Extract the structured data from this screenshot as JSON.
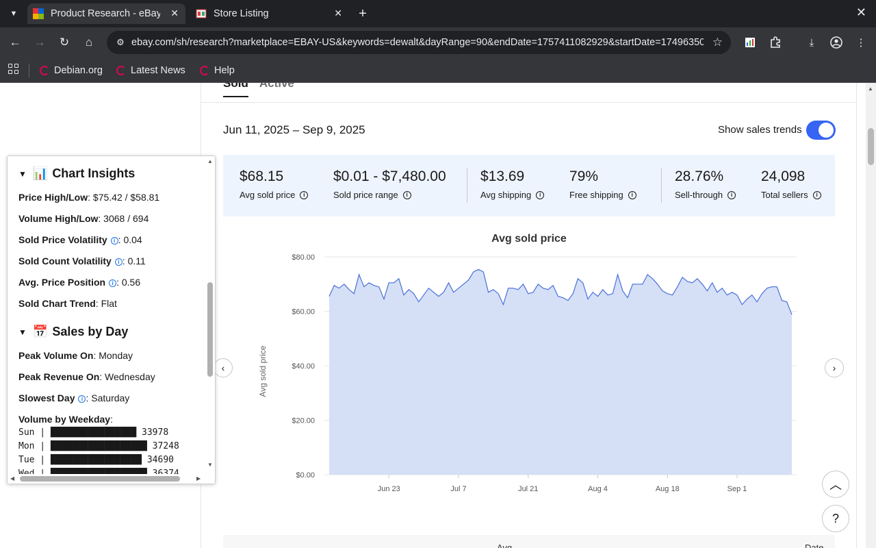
{
  "browser": {
    "tabs": [
      {
        "title": "Product Research - eBay",
        "active": true
      },
      {
        "title": "Store Listing",
        "active": false
      }
    ],
    "url": "ebay.com/sh/research?marketplace=EBAY-US&keywords=dewalt&dayRange=90&endDate=1757411082929&startDate=1749635082...",
    "bookmarks": [
      "Debian.org",
      "Latest News",
      "Help"
    ]
  },
  "research": {
    "tabs": [
      "Sold",
      "Active"
    ],
    "date_range": "Jun 11, 2025 – Sep 9, 2025",
    "show_trends_label": "Show sales trends",
    "show_trends_on": true,
    "stats": [
      {
        "value": "$68.15",
        "label": "Avg sold price"
      },
      {
        "value": "$0.01 - $7,480.00",
        "label": "Sold price range"
      },
      {
        "value": "$13.69",
        "label": "Avg shipping"
      },
      {
        "value": "79%",
        "label": "Free shipping"
      },
      {
        "value": "28.76%",
        "label": "Sell-through"
      },
      {
        "value": "24,098",
        "label": "Total sellers"
      }
    ],
    "table_header": {
      "avg": "Avg",
      "date": "Date"
    }
  },
  "chart_data": {
    "type": "area",
    "title": "Avg sold price",
    "ylabel": "Avg sold price",
    "xlabel": "",
    "ylim": [
      0,
      80
    ],
    "y_ticks": [
      "$0.00",
      "$20.00",
      "$40.00",
      "$60.00",
      "$80.00"
    ],
    "x_ticks": [
      "Jun 23",
      "Jul 7",
      "Jul 21",
      "Aug 4",
      "Aug 18",
      "Sep 1"
    ],
    "grid": true,
    "color": "#4a6fd8",
    "fill": "#d5e0f7",
    "x_start": "Jun 11",
    "values": [
      65.5,
      69.5,
      68.5,
      70,
      68,
      66.5,
      73.5,
      69,
      70.5,
      69.5,
      69,
      64.5,
      70.5,
      70.5,
      72,
      66,
      68,
      66.5,
      63.5,
      66,
      68.5,
      67,
      65.5,
      67,
      70.5,
      67,
      68.5,
      70,
      71.5,
      74.5,
      75.4,
      74.5,
      67,
      68,
      66.5,
      62.5,
      68.5,
      68.5,
      68,
      70,
      66.5,
      67,
      70,
      68.5,
      68,
      69.5,
      65.5,
      65,
      64,
      66.5,
      72,
      70.5,
      64.5,
      67,
      65.5,
      68,
      66,
      66.5,
      73.5,
      67.5,
      65,
      70,
      70,
      70,
      73.5,
      72,
      70,
      67.5,
      66.5,
      66,
      69,
      72.5,
      71,
      70.5,
      72,
      70,
      67.5,
      70.5,
      67,
      68.5,
      66,
      67,
      66,
      62.5,
      64.5,
      66,
      63.5,
      66.5,
      68.5,
      69,
      69,
      64,
      63.5,
      58.8
    ]
  },
  "insights": {
    "chart_insights_title": "Chart Insights",
    "chart_insights_emoji": "📊",
    "rows": [
      {
        "label": "Price High/Low",
        "value": ": $75.42 / $58.81",
        "info": false
      },
      {
        "label": "Volume High/Low",
        "value": ": 3068 / 694",
        "info": false
      },
      {
        "label": "Sold Price Volatility",
        "value": ": 0.04",
        "info": true
      },
      {
        "label": "Sold Count Volatility",
        "value": ": 0.11",
        "info": true
      },
      {
        "label": "Avg. Price Position",
        "value": ": 0.56",
        "info": true
      },
      {
        "label": "Sold Chart Trend",
        "value": ": Flat",
        "info": false
      }
    ],
    "sales_by_day_title": "Sales by Day",
    "sales_by_day_emoji": "📅",
    "day_rows": [
      {
        "label": "Peak Volume On",
        "value": ": Monday",
        "info": false
      },
      {
        "label": "Peak Revenue On",
        "value": ": Wednesday",
        "info": false
      },
      {
        "label": "Slowest Day",
        "value": ": Saturday",
        "info": true
      }
    ],
    "volume_by_weekday_label": "Volume by Weekday",
    "weekday_bars": [
      "Sun | ████████████████ 33978",
      "Mon | ██████████████████ 37248",
      "Tue | █████████████████ 34690",
      "Wed | ██████████████████ 36374"
    ]
  }
}
